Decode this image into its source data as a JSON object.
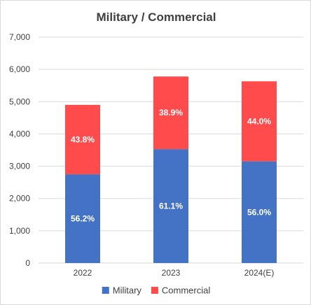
{
  "chart_data": {
    "type": "bar",
    "stacked": true,
    "title": "Military / Commercial",
    "categories": [
      "2022",
      "2023",
      "2024(E)"
    ],
    "series": [
      {
        "name": "Military",
        "color": "#4472c4",
        "values": [
          2750,
          3530,
          3150
        ],
        "labels": [
          "56.2%",
          "61.1%",
          "56.0%"
        ]
      },
      {
        "name": "Commercial",
        "color": "#ff4b4b",
        "values": [
          2150,
          2250,
          2480
        ],
        "labels": [
          "43.8%",
          "38.9%",
          "44.0%"
        ]
      }
    ],
    "ylim": [
      0,
      7000
    ],
    "yticks": [
      0,
      1000,
      2000,
      3000,
      4000,
      5000,
      6000,
      7000
    ],
    "ytick_labels": [
      "0",
      "1,000",
      "2,000",
      "3,000",
      "4,000",
      "5,000",
      "6,000",
      "7,000"
    ],
    "grid": true,
    "legend_position": "bottom",
    "gridline_color": "#d9d9d9"
  }
}
